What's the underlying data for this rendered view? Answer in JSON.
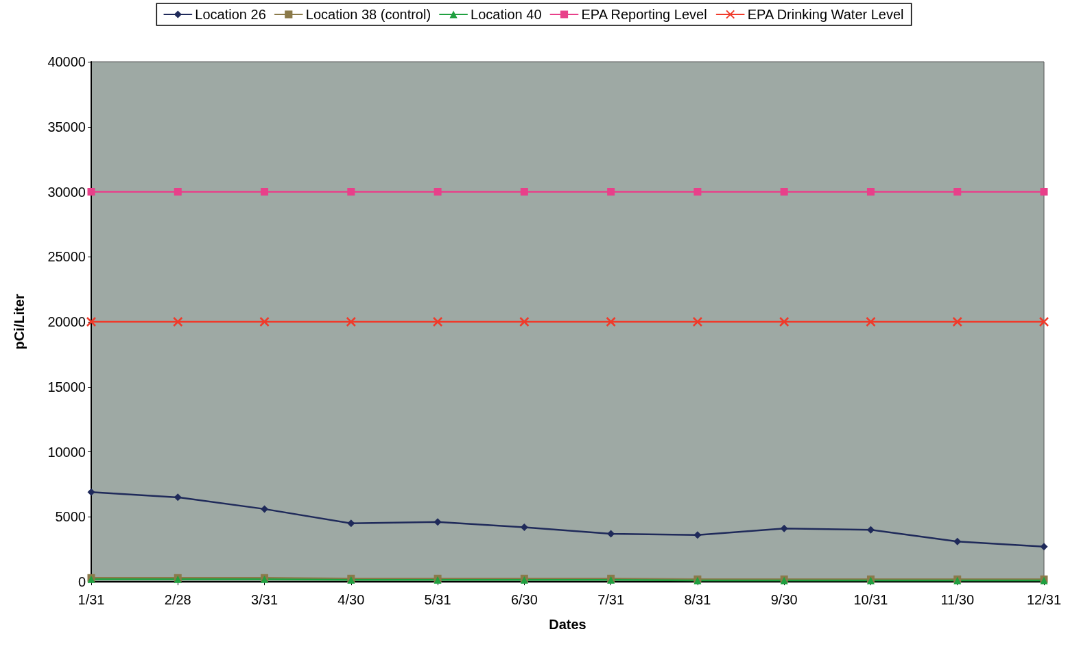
{
  "chart_data": {
    "type": "line",
    "xlabel": "Dates",
    "ylabel": "pCi/Liter",
    "categories": [
      "1/31",
      "2/28",
      "3/31",
      "4/30",
      "5/31",
      "6/30",
      "7/31",
      "8/31",
      "9/30",
      "10/31",
      "11/30",
      "12/31"
    ],
    "series": [
      {
        "name": "Location 26",
        "color": "#1f2a5a",
        "marker": "diamond",
        "values": [
          6900,
          6500,
          5600,
          4500,
          4600,
          4200,
          3700,
          3600,
          4100,
          4000,
          3100,
          2700
        ]
      },
      {
        "name": "Location 38 (control)",
        "color": "#8b7a4a",
        "marker": "square",
        "values": [
          300,
          300,
          300,
          250,
          250,
          250,
          250,
          200,
          200,
          200,
          200,
          200
        ]
      },
      {
        "name": "Location 40",
        "color": "#20a040",
        "marker": "triangle",
        "values": [
          200,
          200,
          200,
          150,
          150,
          150,
          150,
          100,
          100,
          100,
          100,
          100
        ]
      },
      {
        "name": "EPA Reporting Level",
        "color": "#e8408a",
        "marker": "square",
        "values": [
          30000,
          30000,
          30000,
          30000,
          30000,
          30000,
          30000,
          30000,
          30000,
          30000,
          30000,
          30000
        ]
      },
      {
        "name": "EPA Drinking Water Level",
        "color": "#f03a2a",
        "marker": "cross",
        "values": [
          20000,
          20000,
          20000,
          20000,
          20000,
          20000,
          20000,
          20000,
          20000,
          20000,
          20000,
          20000
        ]
      }
    ],
    "ylim": [
      0,
      40000
    ],
    "yticks": [
      0,
      5000,
      10000,
      15000,
      20000,
      25000,
      30000,
      35000,
      40000
    ],
    "grid": false,
    "legend": "top",
    "line_style": "solid"
  }
}
